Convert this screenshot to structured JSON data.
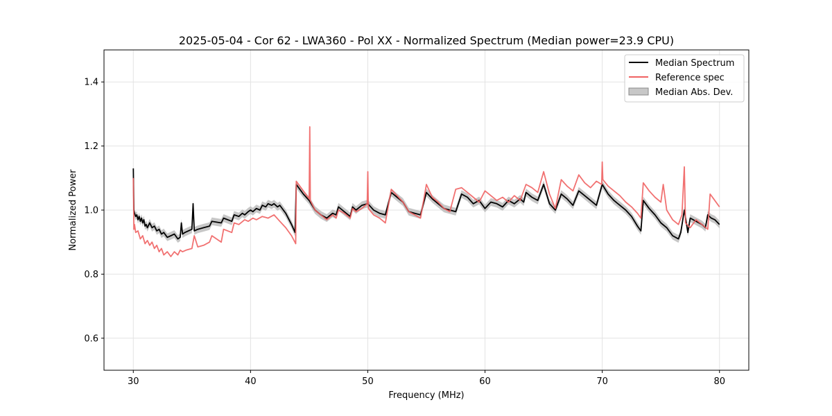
{
  "chart_data": {
    "type": "line",
    "title": "2025-05-04 - Cor 62 - LWA360 - Pol XX - Normalized Spectrum (Median power=23.9 CPU)",
    "xlabel": "Frequency (MHz)",
    "ylabel": "Normalized Power",
    "xlim": [
      27.5,
      82.5
    ],
    "ylim": [
      0.5,
      1.5
    ],
    "xticks": [
      30,
      40,
      50,
      60,
      70,
      80
    ],
    "yticks": [
      0.6,
      0.8,
      1.0,
      1.2,
      1.4
    ],
    "xtick_labels": [
      "30",
      "40",
      "50",
      "60",
      "70",
      "80"
    ],
    "ytick_labels": [
      "0.6",
      "0.8",
      "1.0",
      "1.2",
      "1.4"
    ],
    "grid": true,
    "legend_position": "top-right",
    "colors": {
      "median": "#000000",
      "reference": "#f06262",
      "mad": "#b4b4b4"
    },
    "mad_halfwidth": 0.012,
    "series": [
      {
        "name": "Median Spectrum",
        "x": [
          30.0,
          30.05,
          30.1,
          30.2,
          30.3,
          30.4,
          30.5,
          30.6,
          30.7,
          30.8,
          30.9,
          31.0,
          31.1,
          31.2,
          31.4,
          31.6,
          31.8,
          32.0,
          32.2,
          32.4,
          32.6,
          32.9,
          33.2,
          33.5,
          33.8,
          34.0,
          34.1,
          34.2,
          34.4,
          35.0,
          35.1,
          35.2,
          35.5,
          36.0,
          36.5,
          36.7,
          37.5,
          37.7,
          38.4,
          38.6,
          39.0,
          39.3,
          39.5,
          39.8,
          40.0,
          40.2,
          40.5,
          40.8,
          41.0,
          41.3,
          41.5,
          41.8,
          42.0,
          42.3,
          42.5,
          43.0,
          43.5,
          43.8,
          43.9,
          44.5,
          45.0,
          45.5,
          46.0,
          46.5,
          47.0,
          47.3,
          47.5,
          48.0,
          48.5,
          48.7,
          49.0,
          49.5,
          50.0,
          50.5,
          51.0,
          51.5,
          52.0,
          52.5,
          53.0,
          53.5,
          54.0,
          54.5,
          55.0,
          55.5,
          56.0,
          56.5,
          57.0,
          57.5,
          58.0,
          58.5,
          59.0,
          59.5,
          60.0,
          60.5,
          61.0,
          61.5,
          62.0,
          62.5,
          63.0,
          63.3,
          63.5,
          64.0,
          64.5,
          65.0,
          65.5,
          66.0,
          66.5,
          67.0,
          67.5,
          68.0,
          68.5,
          69.0,
          69.5,
          70.0,
          70.5,
          71.0,
          71.5,
          72.0,
          72.5,
          73.0,
          73.3,
          73.5,
          74.0,
          74.5,
          75.0,
          75.5,
          76.0,
          76.5,
          76.7,
          77.0,
          77.3,
          77.5,
          78.0,
          78.5,
          78.8,
          79.0,
          79.3,
          79.6,
          80.0
        ],
        "y": [
          1.13,
          1.0,
          0.99,
          0.98,
          0.985,
          0.97,
          0.98,
          0.965,
          0.975,
          0.96,
          0.97,
          0.95,
          0.955,
          0.945,
          0.96,
          0.945,
          0.95,
          0.935,
          0.94,
          0.925,
          0.93,
          0.915,
          0.92,
          0.925,
          0.91,
          0.915,
          0.96,
          0.925,
          0.93,
          0.94,
          1.02,
          0.935,
          0.94,
          0.945,
          0.95,
          0.965,
          0.96,
          0.975,
          0.965,
          0.985,
          0.98,
          0.99,
          0.985,
          0.995,
          1.0,
          0.995,
          1.005,
          1.0,
          1.015,
          1.01,
          1.02,
          1.015,
          1.02,
          1.01,
          1.015,
          0.99,
          0.955,
          0.93,
          1.08,
          1.05,
          1.03,
          1.0,
          0.985,
          0.975,
          0.99,
          0.985,
          1.01,
          0.995,
          0.98,
          1.01,
          1.0,
          1.015,
          1.02,
          1.0,
          0.99,
          0.985,
          1.055,
          1.04,
          1.025,
          0.995,
          0.99,
          0.985,
          1.055,
          1.035,
          1.02,
          1.005,
          1.0,
          0.995,
          1.05,
          1.04,
          1.02,
          1.03,
          1.005,
          1.025,
          1.02,
          1.01,
          1.03,
          1.02,
          1.035,
          1.025,
          1.055,
          1.04,
          1.03,
          1.08,
          1.02,
          1.0,
          1.05,
          1.035,
          1.015,
          1.06,
          1.045,
          1.03,
          1.015,
          1.08,
          1.05,
          1.03,
          1.015,
          1.0,
          0.98,
          0.95,
          0.935,
          1.03,
          1.005,
          0.985,
          0.96,
          0.945,
          0.92,
          0.91,
          0.93,
          1.0,
          0.93,
          0.975,
          0.965,
          0.955,
          0.945,
          0.985,
          0.975,
          0.97,
          0.955
        ]
      },
      {
        "name": "Reference spec",
        "x": [
          30.0,
          30.05,
          30.1,
          30.2,
          30.4,
          30.6,
          30.8,
          31.0,
          31.2,
          31.4,
          31.6,
          31.8,
          32.0,
          32.2,
          32.4,
          32.6,
          32.9,
          33.2,
          33.5,
          33.8,
          34.0,
          34.2,
          34.5,
          35.0,
          35.2,
          35.5,
          36.0,
          36.5,
          36.7,
          37.5,
          37.7,
          38.4,
          38.6,
          39.0,
          39.5,
          39.8,
          40.2,
          40.5,
          41.0,
          41.5,
          42.0,
          42.5,
          43.0,
          43.5,
          43.85,
          43.9,
          44.5,
          45.0,
          45.05,
          45.1,
          45.5,
          46.0,
          46.5,
          47.0,
          47.3,
          47.5,
          48.0,
          48.5,
          48.7,
          49.0,
          49.5,
          49.95,
          50.0,
          50.05,
          50.5,
          51.0,
          51.5,
          52.0,
          52.5,
          53.0,
          53.5,
          54.0,
          54.5,
          55.0,
          55.5,
          56.0,
          56.5,
          57.0,
          57.5,
          58.0,
          58.5,
          59.0,
          59.5,
          60.0,
          60.5,
          61.0,
          61.5,
          62.0,
          62.5,
          63.0,
          63.5,
          64.0,
          64.5,
          65.0,
          65.5,
          66.0,
          66.5,
          67.0,
          67.5,
          68.0,
          68.5,
          69.0,
          69.5,
          69.95,
          70.0,
          70.05,
          70.5,
          71.0,
          71.5,
          72.0,
          72.5,
          73.0,
          73.3,
          73.5,
          74.0,
          74.5,
          75.0,
          75.2,
          75.5,
          76.0,
          76.5,
          76.8,
          77.0,
          77.1,
          77.5,
          78.0,
          78.5,
          79.0,
          79.2,
          79.5,
          80.0
        ],
        "y": [
          1.1,
          0.94,
          0.955,
          0.93,
          0.935,
          0.91,
          0.92,
          0.895,
          0.905,
          0.89,
          0.9,
          0.88,
          0.89,
          0.87,
          0.88,
          0.86,
          0.87,
          0.855,
          0.87,
          0.86,
          0.875,
          0.87,
          0.875,
          0.88,
          0.92,
          0.885,
          0.89,
          0.9,
          0.92,
          0.9,
          0.94,
          0.93,
          0.96,
          0.955,
          0.97,
          0.965,
          0.975,
          0.97,
          0.98,
          0.975,
          0.985,
          0.965,
          0.945,
          0.92,
          0.895,
          1.09,
          1.06,
          1.035,
          1.26,
          1.03,
          1.0,
          0.985,
          0.97,
          0.985,
          0.975,
          1.0,
          0.99,
          0.975,
          1.005,
          0.995,
          1.005,
          1.02,
          1.12,
          1.005,
          0.985,
          0.975,
          0.96,
          1.065,
          1.045,
          1.025,
          0.995,
          0.985,
          0.975,
          1.08,
          1.04,
          1.025,
          1.005,
          0.995,
          1.065,
          1.07,
          1.055,
          1.04,
          1.025,
          1.06,
          1.045,
          1.03,
          1.04,
          1.025,
          1.045,
          1.03,
          1.08,
          1.07,
          1.055,
          1.12,
          1.05,
          1.005,
          1.095,
          1.075,
          1.06,
          1.11,
          1.085,
          1.07,
          1.09,
          1.08,
          1.15,
          1.095,
          1.075,
          1.06,
          1.045,
          1.025,
          1.01,
          0.99,
          0.975,
          1.085,
          1.06,
          1.04,
          1.025,
          1.08,
          1.0,
          0.97,
          0.955,
          0.985,
          1.135,
          0.96,
          0.945,
          0.97,
          0.955,
          0.94,
          1.05,
          1.035,
          1.01
        ]
      },
      {
        "name": "Median Abs. Dev."
      }
    ]
  }
}
